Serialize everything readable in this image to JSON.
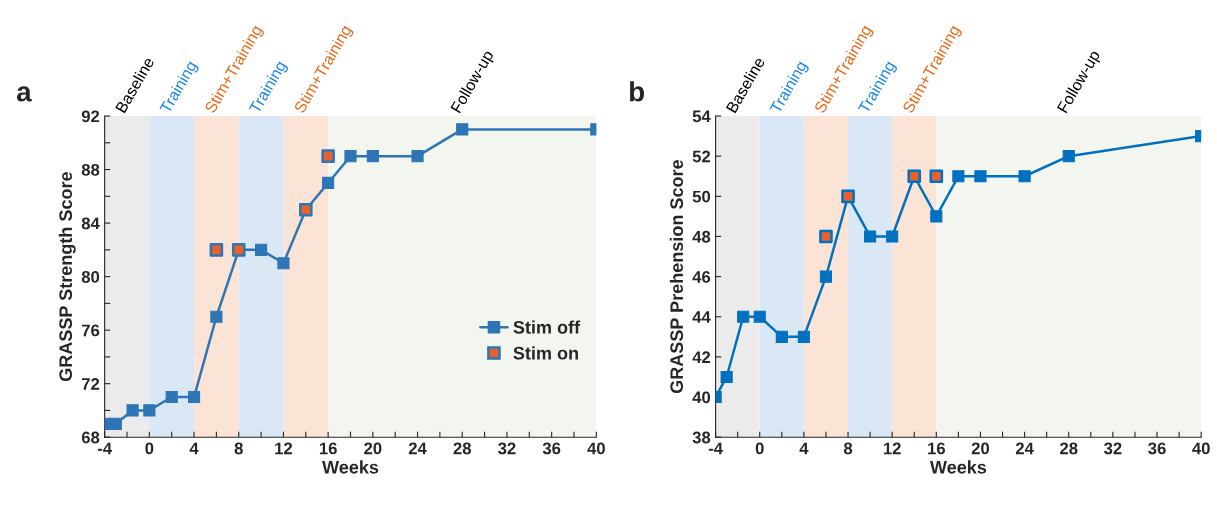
{
  "chart_data": [
    {
      "type": "line",
      "title": "a",
      "xlabel": "Weeks",
      "ylabel": "GRASSP Strength Score",
      "xlim": [
        -4,
        40
      ],
      "ylim": [
        68,
        92
      ],
      "xticks": [
        -4,
        {
          "value": -2,
          "label": null
        },
        0,
        {
          "value": 2,
          "label": null
        },
        4,
        {
          "value": 6,
          "label": null
        },
        8,
        {
          "value": 10,
          "label": null
        },
        12,
        {
          "value": 14,
          "label": null
        },
        16,
        {
          "value": 18,
          "label": null
        },
        20,
        {
          "value": 22,
          "label": null
        },
        24,
        {
          "value": 26,
          "label": null
        },
        28,
        {
          "value": 30,
          "label": null
        },
        32,
        {
          "value": 34,
          "label": null
        },
        36,
        {
          "value": 38,
          "label": null
        },
        40
      ],
      "yticks": [
        68,
        {
          "value": 70,
          "label": null
        },
        72,
        {
          "value": 74,
          "label": null
        },
        76,
        {
          "value": 78,
          "label": null
        },
        80,
        {
          "value": 82,
          "label": null
        },
        84,
        {
          "value": 86,
          "label": null
        },
        88,
        {
          "value": 90,
          "label": null
        },
        92
      ],
      "grid": false,
      "legend": "lower right",
      "bands": [
        {
          "axis": "x",
          "from": -4,
          "to": 0,
          "label": "Baseline",
          "color": "#ebebeb"
        },
        {
          "axis": "x",
          "from": 0,
          "to": 4,
          "label": "Training",
          "color": "#dae8f5"
        },
        {
          "axis": "x",
          "from": 4,
          "to": 8,
          "label": "Stim+Training",
          "color": "#fbe4d6"
        },
        {
          "axis": "x",
          "from": 8,
          "to": 12,
          "label": "Training",
          "color": "#dae8f5"
        },
        {
          "axis": "x",
          "from": 12,
          "to": 16,
          "label": "Stim+Training",
          "color": "#fbe4d6"
        },
        {
          "axis": "x",
          "from": 16,
          "to": 40,
          "label": "Follow-up",
          "color": "#f2f6ef"
        }
      ],
      "series": [
        {
          "name": "Stim off",
          "color": "#2e75b6",
          "marker": "square",
          "x": [
            -4,
            -3,
            -1.5,
            0,
            2,
            4,
            6,
            8,
            10,
            12,
            14,
            16,
            18,
            20,
            24,
            28,
            40
          ],
          "values": [
            69,
            69,
            70,
            70,
            71,
            71,
            77,
            82,
            82,
            81,
            85,
            87,
            89,
            89,
            89,
            91,
            91
          ]
        },
        {
          "name": "Stim on",
          "type": "scatter",
          "color": "#e8612c",
          "marker": "square",
          "x": [
            6,
            8,
            14,
            16
          ],
          "values": [
            82,
            82,
            85,
            89
          ]
        }
      ]
    },
    {
      "type": "line",
      "title": "b",
      "xlabel": "Weeks",
      "ylabel": "GRASSP Prehension Score",
      "xlim": [
        -4,
        40
      ],
      "ylim": [
        38,
        54
      ],
      "xticks": [
        -4,
        {
          "value": -2,
          "label": null
        },
        0,
        {
          "value": 2,
          "label": null
        },
        4,
        {
          "value": 6,
          "label": null
        },
        8,
        {
          "value": 10,
          "label": null
        },
        12,
        {
          "value": 14,
          "label": null
        },
        16,
        {
          "value": 18,
          "label": null
        },
        20,
        {
          "value": 22,
          "label": null
        },
        24,
        {
          "value": 26,
          "label": null
        },
        28,
        {
          "value": 30,
          "label": null
        },
        32,
        {
          "value": 34,
          "label": null
        },
        36,
        {
          "value": 38,
          "label": null
        },
        40
      ],
      "yticks": [
        38,
        40,
        42,
        44,
        46,
        48,
        50,
        52,
        54
      ],
      "grid": false,
      "bands": [
        {
          "axis": "x",
          "from": -4,
          "to": 0,
          "label": "Baseline",
          "color": "#ebebeb"
        },
        {
          "axis": "x",
          "from": 0,
          "to": 4,
          "label": "Training",
          "color": "#dae8f5"
        },
        {
          "axis": "x",
          "from": 4,
          "to": 8,
          "label": "Stim+Training",
          "color": "#fbe4d6"
        },
        {
          "axis": "x",
          "from": 8,
          "to": 12,
          "label": "Training",
          "color": "#dae8f5"
        },
        {
          "axis": "x",
          "from": 12,
          "to": 16,
          "label": "Stim+Training",
          "color": "#fbe4d6"
        },
        {
          "axis": "x",
          "from": 16,
          "to": 40,
          "label": "Follow-up",
          "color": "#f2f6ef"
        }
      ],
      "series": [
        {
          "color": "#0070c0",
          "marker": "square",
          "x": [
            -4,
            -3,
            -1.5,
            0,
            2,
            4,
            6,
            8,
            10,
            12,
            14,
            16,
            18,
            20,
            24,
            28,
            40
          ],
          "values": [
            40,
            41,
            44,
            44,
            43,
            43,
            46,
            50,
            48,
            48,
            51,
            49,
            51,
            51,
            51,
            52,
            53
          ]
        },
        {
          "type": "scatter",
          "color": "#e8612c",
          "marker": "square",
          "x": [
            6,
            8,
            14,
            16
          ],
          "values": [
            48,
            50,
            51,
            51
          ]
        }
      ]
    }
  ]
}
